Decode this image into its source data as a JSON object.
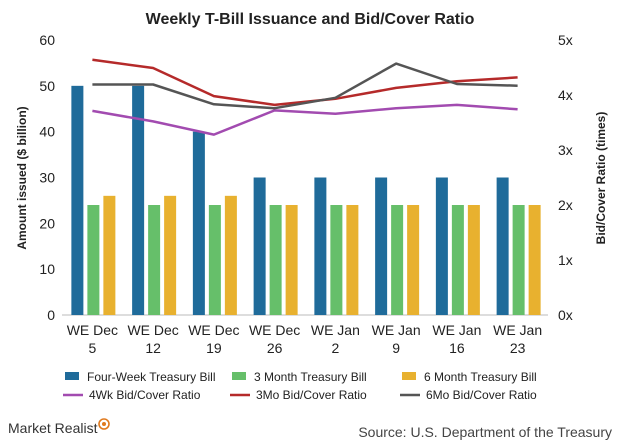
{
  "chart_data": {
    "type": "bar",
    "title": "Weekly T-Bill Issuance and Bid/Cover Ratio",
    "ylabel": "Amount issued ($ billion)",
    "y2label": "Bid/Cover Ratio (times)",
    "ylim": [
      0,
      60
    ],
    "y2lim": [
      0,
      5
    ],
    "yticks": [
      "0",
      "10",
      "20",
      "30",
      "40",
      "50",
      "60"
    ],
    "y2ticks": [
      "0x",
      "1x",
      "2x",
      "3x",
      "4x",
      "5x"
    ],
    "grid": false,
    "legend_position": "bottom",
    "categories": [
      [
        "WE Dec",
        "5"
      ],
      [
        "WE Dec",
        "12"
      ],
      [
        "WE Dec",
        "19"
      ],
      [
        "WE Dec",
        "26"
      ],
      [
        "WE Jan",
        "2"
      ],
      [
        "WE Jan",
        "9"
      ],
      [
        "WE Jan",
        "16"
      ],
      [
        "WE Jan",
        "23"
      ]
    ],
    "bar_series": [
      {
        "name": "Four-Week Treasury Bill",
        "color": "#1f6b9a",
        "values": [
          50,
          50,
          40,
          30,
          30,
          30,
          30,
          30
        ]
      },
      {
        "name": "3 Month Treasury Bill",
        "color": "#66bf6a",
        "values": [
          24,
          24,
          24,
          24,
          24,
          24,
          24,
          24
        ]
      },
      {
        "name": "6 Month Treasury Bill",
        "color": "#e8b12f",
        "values": [
          26,
          26,
          26,
          24,
          24,
          24,
          24,
          24
        ]
      }
    ],
    "line_series": [
      {
        "name": "4Wk Bid/Cover Ratio",
        "color": "#a24bb0",
        "values": [
          3.71,
          3.52,
          3.28,
          3.72,
          3.66,
          3.76,
          3.82,
          3.74
        ]
      },
      {
        "name": "3Mo Bid/Cover Ratio",
        "color": "#b52a2a",
        "values": [
          4.64,
          4.49,
          3.98,
          3.82,
          3.93,
          4.13,
          4.25,
          4.32
        ]
      },
      {
        "name": "6Mo Bid/Cover Ratio",
        "color": "#555555",
        "values": [
          4.19,
          4.19,
          3.83,
          3.76,
          3.95,
          4.57,
          4.2,
          4.17
        ]
      }
    ]
  },
  "footer": {
    "brand": "Market Realist",
    "source": "Source: U.S. Department of the Treasury"
  }
}
